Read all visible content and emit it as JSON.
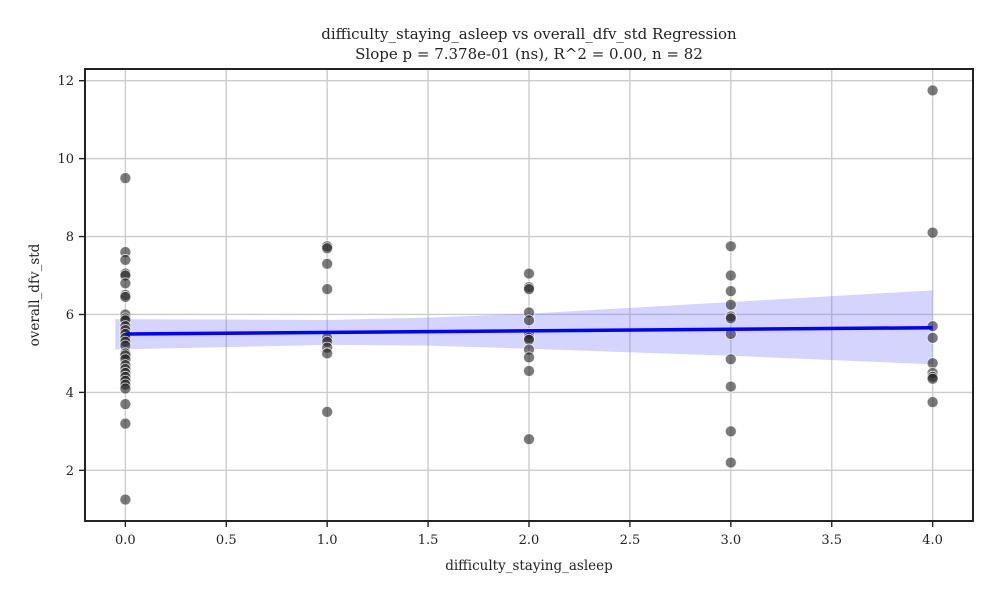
{
  "chart_data": {
    "type": "scatter",
    "title": "difficulty_staying_asleep vs overall_dfv_std Regression",
    "subtitle": "Slope p = 7.378e-01 (ns), R^2 = 0.00, n = 82",
    "xlabel": "difficulty_staying_asleep",
    "ylabel": "overall_dfv_std",
    "xlim": [
      -0.2,
      4.2
    ],
    "ylim": [
      0.7,
      12.3
    ],
    "x_ticks": [
      0.0,
      0.5,
      1.0,
      1.5,
      2.0,
      2.5,
      3.0,
      3.5,
      4.0
    ],
    "x_tick_labels": [
      "0.0",
      "0.5",
      "1.0",
      "1.5",
      "2.0",
      "2.5",
      "3.0",
      "3.5",
      "4.0"
    ],
    "y_ticks": [
      2,
      4,
      6,
      8,
      10,
      12
    ],
    "y_tick_labels": [
      "2",
      "4",
      "6",
      "8",
      "10",
      "12"
    ],
    "grid": true,
    "points": [
      {
        "x": 0,
        "y": 9.5
      },
      {
        "x": 0,
        "y": 7.6
      },
      {
        "x": 0,
        "y": 7.4
      },
      {
        "x": 0,
        "y": 7.05
      },
      {
        "x": 0,
        "y": 7.0
      },
      {
        "x": 0,
        "y": 6.8
      },
      {
        "x": 0,
        "y": 6.5
      },
      {
        "x": 0,
        "y": 6.45
      },
      {
        "x": 0,
        "y": 6.0
      },
      {
        "x": 0,
        "y": 5.9
      },
      {
        "x": 0,
        "y": 5.85
      },
      {
        "x": 0,
        "y": 5.7
      },
      {
        "x": 0,
        "y": 5.6
      },
      {
        "x": 0,
        "y": 5.5
      },
      {
        "x": 0,
        "y": 5.4
      },
      {
        "x": 0,
        "y": 5.3
      },
      {
        "x": 0,
        "y": 5.2
      },
      {
        "x": 0,
        "y": 5.0
      },
      {
        "x": 0,
        "y": 4.95
      },
      {
        "x": 0,
        "y": 4.85
      },
      {
        "x": 0,
        "y": 4.7
      },
      {
        "x": 0,
        "y": 4.6
      },
      {
        "x": 0,
        "y": 4.5
      },
      {
        "x": 0,
        "y": 4.4
      },
      {
        "x": 0,
        "y": 4.3
      },
      {
        "x": 0,
        "y": 4.2
      },
      {
        "x": 0,
        "y": 4.1
      },
      {
        "x": 0,
        "y": 3.7
      },
      {
        "x": 0,
        "y": 3.2
      },
      {
        "x": 0,
        "y": 1.25
      },
      {
        "x": 1,
        "y": 7.75
      },
      {
        "x": 1,
        "y": 7.7
      },
      {
        "x": 1,
        "y": 7.3
      },
      {
        "x": 1,
        "y": 6.65
      },
      {
        "x": 1,
        "y": 5.4
      },
      {
        "x": 1,
        "y": 5.3
      },
      {
        "x": 1,
        "y": 5.15
      },
      {
        "x": 1,
        "y": 5.0
      },
      {
        "x": 1,
        "y": 3.5
      },
      {
        "x": 2,
        "y": 7.05
      },
      {
        "x": 2,
        "y": 6.7
      },
      {
        "x": 2,
        "y": 6.65
      },
      {
        "x": 2,
        "y": 6.05
      },
      {
        "x": 2,
        "y": 5.85
      },
      {
        "x": 2,
        "y": 5.5
      },
      {
        "x": 2,
        "y": 5.4
      },
      {
        "x": 2,
        "y": 5.35
      },
      {
        "x": 2,
        "y": 5.1
      },
      {
        "x": 2,
        "y": 4.9
      },
      {
        "x": 2,
        "y": 4.55
      },
      {
        "x": 2,
        "y": 2.8
      },
      {
        "x": 3,
        "y": 7.75
      },
      {
        "x": 3,
        "y": 7.0
      },
      {
        "x": 3,
        "y": 6.6
      },
      {
        "x": 3,
        "y": 6.25
      },
      {
        "x": 3,
        "y": 5.95
      },
      {
        "x": 3,
        "y": 5.9
      },
      {
        "x": 3,
        "y": 5.5
      },
      {
        "x": 3,
        "y": 4.85
      },
      {
        "x": 3,
        "y": 4.15
      },
      {
        "x": 3,
        "y": 3.0
      },
      {
        "x": 3,
        "y": 2.2
      },
      {
        "x": 4,
        "y": 11.75
      },
      {
        "x": 4,
        "y": 8.1
      },
      {
        "x": 4,
        "y": 5.7
      },
      {
        "x": 4,
        "y": 5.4
      },
      {
        "x": 4,
        "y": 4.75
      },
      {
        "x": 4,
        "y": 4.5
      },
      {
        "x": 4,
        "y": 4.4
      },
      {
        "x": 4,
        "y": 4.35
      },
      {
        "x": 4,
        "y": 3.75
      }
    ],
    "regression": {
      "x": [
        0,
        4
      ],
      "y": [
        5.5,
        5.66
      ],
      "color": "#0000ff",
      "ci_color": "#7070ff",
      "ci": [
        {
          "x": -0.05,
          "lower": 5.1,
          "upper": 5.88
        },
        {
          "x": 1.0,
          "lower": 5.22,
          "upper": 5.86
        },
        {
          "x": 1.5,
          "lower": 5.2,
          "upper": 5.92
        },
        {
          "x": 2.0,
          "lower": 5.12,
          "upper": 6.02
        },
        {
          "x": 3.0,
          "lower": 4.94,
          "upper": 6.32
        },
        {
          "x": 4.0,
          "lower": 4.72,
          "upper": 6.62
        }
      ]
    },
    "point_color": "#222222"
  }
}
